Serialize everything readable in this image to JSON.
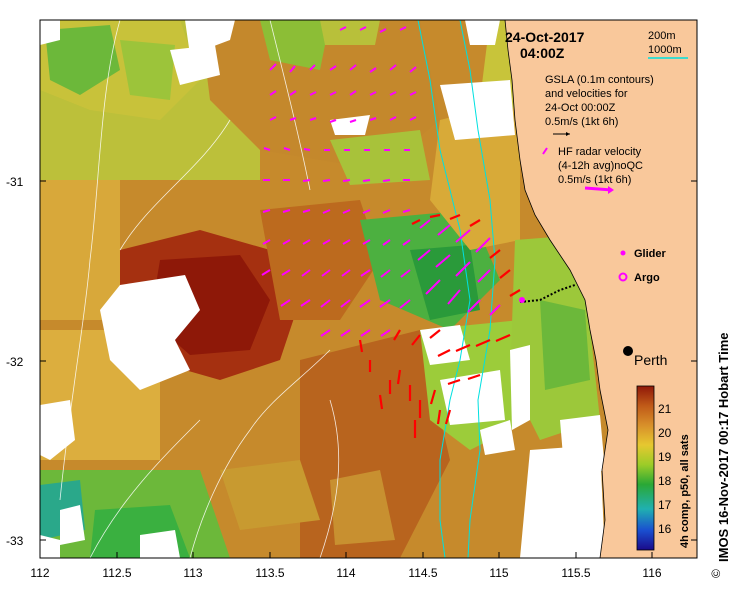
{
  "map": {
    "title_date": "24-Oct-2017",
    "title_time": "04:00Z",
    "depth_legend": {
      "line1": "200m",
      "line2": "1000m"
    },
    "gsla_legend": {
      "line1": "GSLA (0.1m contours)",
      "line2": "and velocities for",
      "line3": "24-Oct 00:00Z",
      "line4": "0.5m/s (1kt 6h)"
    },
    "hf_legend": {
      "line1": "HF radar velocity",
      "line2": "(4-12h avg)noQC",
      "line3": "0.5m/s (1kt 6h)"
    },
    "glider_label": "Glider",
    "argo_label": "Argo",
    "city_label": "Perth",
    "x_ticks": [
      "112",
      "112.5",
      "113",
      "113.5",
      "114",
      "114.5",
      "115",
      "115.5",
      "116"
    ],
    "y_ticks": [
      "-31",
      "-32",
      "-33"
    ],
    "colorbar": {
      "ticks": [
        "21",
        "20",
        "19",
        "18",
        "17",
        "16"
      ],
      "label": "4h comp, p50, all sats"
    },
    "credit": "IMOS 16-Nov-2017 00:17 Hobart Time",
    "copyright_symbol": "©",
    "colors": {
      "land": "#f9c89b",
      "warm_sst": "#a52a0a",
      "mid_sst": "#d28a2b",
      "cool_sst": "#3aa83a",
      "hf_vectors": "#ff00ff",
      "gsla_vectors": "#ff0000",
      "isobath_200": "#00e0e0"
    }
  }
}
